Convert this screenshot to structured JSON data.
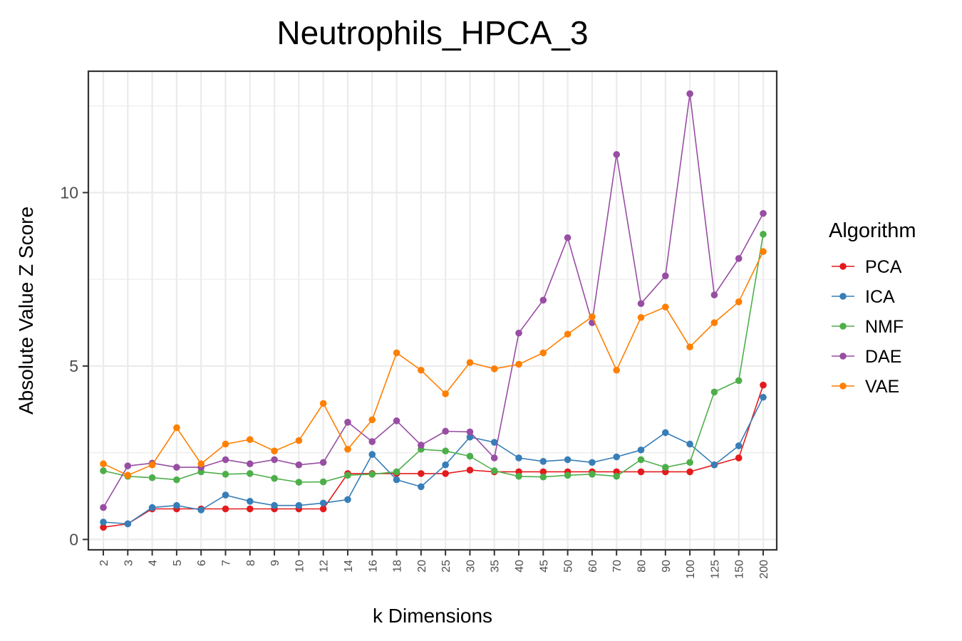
{
  "chart_data": {
    "type": "line",
    "title": "Neutrophils_HPCA_3",
    "xlabel": "k Dimensions",
    "ylabel": "Absolute Value Z Score",
    "categories": [
      "2",
      "3",
      "4",
      "5",
      "6",
      "7",
      "8",
      "9",
      "10",
      "12",
      "14",
      "16",
      "18",
      "20",
      "25",
      "30",
      "35",
      "40",
      "45",
      "50",
      "60",
      "70",
      "80",
      "90",
      "100",
      "125",
      "150",
      "200"
    ],
    "ylim": [
      -0.3,
      13.5
    ],
    "yticks": [
      0,
      5,
      10
    ],
    "grid": true,
    "legend": {
      "title": "Algorithm",
      "position": "right"
    },
    "series": [
      {
        "name": "PCA",
        "color": "#E41A1C",
        "values": [
          0.35,
          0.45,
          0.88,
          0.88,
          0.88,
          0.88,
          0.88,
          0.88,
          0.88,
          0.88,
          1.9,
          1.9,
          1.9,
          1.9,
          1.9,
          2.0,
          1.95,
          1.95,
          1.95,
          1.95,
          1.95,
          1.95,
          1.95,
          1.95,
          1.95,
          2.15,
          2.35,
          4.45
        ]
      },
      {
        "name": "ICA",
        "color": "#377EB8",
        "values": [
          0.5,
          0.45,
          0.92,
          0.98,
          0.85,
          1.28,
          1.1,
          0.98,
          0.98,
          1.05,
          1.15,
          2.45,
          1.72,
          1.52,
          2.15,
          2.95,
          2.8,
          2.35,
          2.25,
          2.3,
          2.22,
          2.38,
          2.58,
          3.08,
          2.75,
          2.15,
          2.7,
          4.1
        ]
      },
      {
        "name": "NMF",
        "color": "#4DAF4A",
        "values": [
          1.98,
          1.82,
          1.78,
          1.72,
          1.95,
          1.88,
          1.9,
          1.76,
          1.65,
          1.66,
          1.85,
          1.88,
          1.95,
          2.6,
          2.55,
          2.4,
          1.98,
          1.82,
          1.8,
          1.85,
          1.88,
          1.82,
          2.3,
          2.08,
          2.22,
          4.25,
          4.58,
          8.8
        ]
      },
      {
        "name": "DAE",
        "color": "#984EA3",
        "values": [
          0.92,
          2.12,
          2.2,
          2.08,
          2.08,
          2.3,
          2.18,
          2.3,
          2.15,
          2.22,
          3.38,
          2.82,
          3.42,
          2.72,
          3.12,
          3.1,
          2.35,
          5.95,
          6.9,
          8.7,
          6.25,
          11.1,
          6.8,
          7.6,
          12.85,
          7.05,
          8.1,
          9.4
        ]
      },
      {
        "name": "VAE",
        "color": "#FF7F00",
        "values": [
          2.18,
          1.85,
          2.15,
          3.22,
          2.18,
          2.75,
          2.88,
          2.55,
          2.85,
          3.92,
          2.6,
          3.45,
          5.38,
          4.88,
          4.2,
          5.1,
          4.92,
          5.05,
          5.38,
          5.92,
          6.42,
          4.88,
          6.4,
          6.7,
          5.55,
          6.25,
          6.85,
          8.3
        ]
      }
    ]
  }
}
